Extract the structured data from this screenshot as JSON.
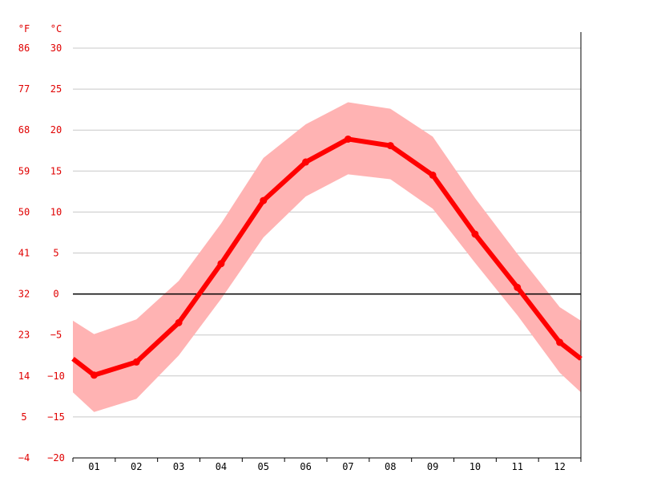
{
  "chart_data": {
    "type": "line",
    "title": "",
    "xlabel": "",
    "ylabel": "",
    "units_left": "°F",
    "units_right": "°C",
    "categories": [
      "01",
      "02",
      "03",
      "04",
      "05",
      "06",
      "07",
      "08",
      "09",
      "10",
      "11",
      "12"
    ],
    "yticks_c": [
      "30",
      "25",
      "20",
      "15",
      "10",
      "5",
      "0",
      "−5",
      "−10",
      "−15",
      "−20"
    ],
    "yticks_f": [
      "86",
      "77",
      "68",
      "59",
      "50",
      "41",
      "32",
      "23",
      "14",
      "5",
      "−4"
    ],
    "ylim": [
      -20,
      30
    ],
    "y_tick_values": [
      30,
      25,
      20,
      15,
      10,
      5,
      0,
      -5,
      -10,
      -15,
      -20
    ],
    "grid": true,
    "zero_line": true,
    "series": [
      {
        "values": [
          -9.9,
          -8.3,
          -3.5,
          3.7,
          11.4,
          16.1,
          18.9,
          18.1,
          14.5,
          7.3,
          0.8,
          -5.9
        ]
      }
    ],
    "band_upper": [
      -4.9,
      -3.1,
      1.6,
      8.6,
      16.6,
      20.7,
      23.4,
      22.6,
      19.2,
      11.7,
      4.9,
      -1.6
    ],
    "band_lower": [
      -14.4,
      -12.8,
      -7.5,
      -0.6,
      6.9,
      11.9,
      14.6,
      14.0,
      10.4,
      3.8,
      -2.6,
      -9.6
    ],
    "colors": {
      "line": "#ff0000",
      "band": "#ffb3b3",
      "axis_labels": "#e00000",
      "grid": "#c8c8c8",
      "zero_line": "#000000"
    }
  }
}
